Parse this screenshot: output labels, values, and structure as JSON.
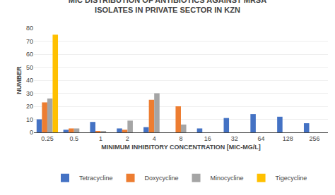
{
  "chart_data": {
    "type": "bar",
    "title": "MIC DISTRIBUTION OF ANTIBIOTICS AGAINST MRSA\nISOLATES IN PRIVATE SECTOR IN KZN",
    "xlabel": "MINIMUM INHIBITORY CONCENTRATION [MIC-MG/L]",
    "ylabel": "NUMBER",
    "categories": [
      "0.25",
      "0.5",
      "1",
      "2",
      "4",
      "8",
      "16",
      "32",
      "64",
      "128",
      "256"
    ],
    "series": [
      {
        "name": "Tetracycline",
        "color": "#4472C4",
        "values": [
          10,
          2,
          8,
          3,
          4,
          0,
          3,
          11,
          14,
          12,
          7
        ]
      },
      {
        "name": "Doxycycline",
        "color": "#ED7D31",
        "values": [
          23,
          3,
          1,
          2,
          25,
          20,
          0,
          0,
          0,
          0,
          0
        ]
      },
      {
        "name": "Minocycline",
        "color": "#A5A5A5",
        "values": [
          26,
          3,
          1,
          9,
          30,
          6,
          0,
          0,
          0,
          0,
          0
        ]
      },
      {
        "name": "Tigecycline",
        "color": "#FFC000",
        "values": [
          75,
          0,
          0,
          0,
          0,
          0,
          0,
          0,
          0,
          0,
          0
        ]
      }
    ],
    "ylim": [
      0,
      80
    ],
    "yticks": [
      0,
      10,
      20,
      30,
      40,
      50,
      60,
      70,
      80
    ],
    "grid": true,
    "legend": "bottom"
  }
}
